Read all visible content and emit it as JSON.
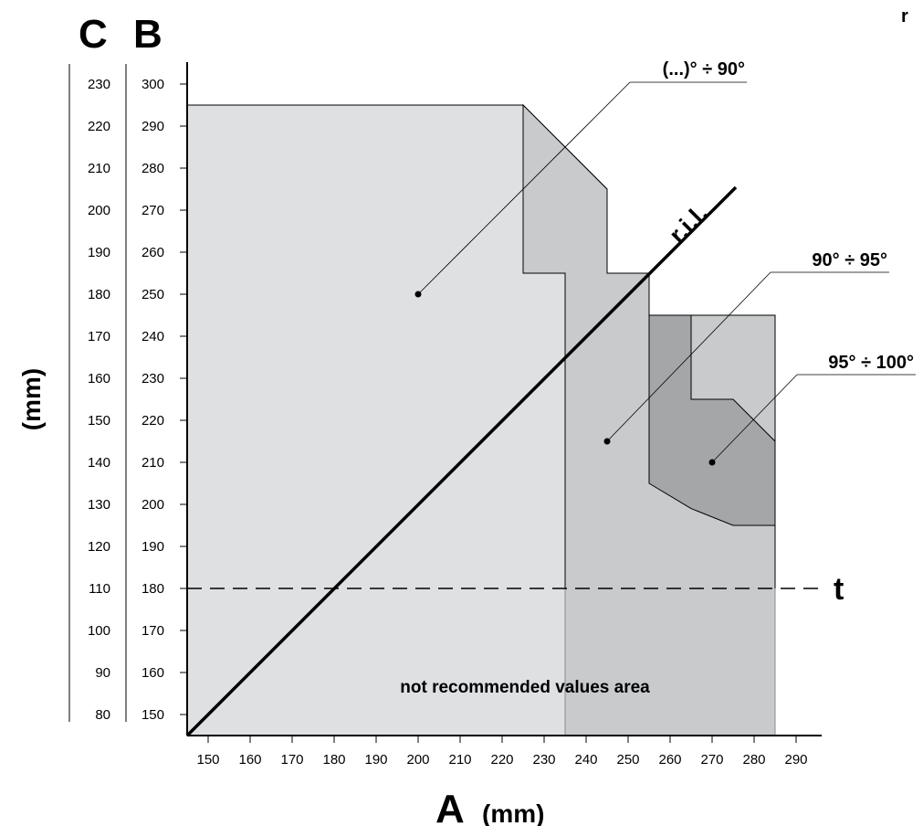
{
  "chart_data": {
    "type": "area",
    "corner_label": "r",
    "x_axis": {
      "letter": "A",
      "unit": "(mm)",
      "min": 145,
      "max": 295,
      "ticks": [
        150,
        160,
        170,
        180,
        190,
        200,
        210,
        220,
        230,
        240,
        250,
        260,
        270,
        280,
        290
      ]
    },
    "y_axis_B": {
      "letter": "B",
      "min": 145,
      "max": 305,
      "ticks": [
        150,
        160,
        170,
        180,
        190,
        200,
        210,
        220,
        230,
        240,
        250,
        260,
        270,
        280,
        290,
        300
      ]
    },
    "y_axis_C": {
      "letter": "C",
      "ticks": [
        80,
        90,
        100,
        110,
        120,
        130,
        140,
        150,
        160,
        170,
        180,
        190,
        200,
        210,
        220,
        230
      ]
    },
    "y_unit": "(mm)",
    "regions": [
      {
        "name": "(...)° ÷ 90°",
        "color": "#dfe0e2",
        "polygon": [
          [
            145,
            145
          ],
          [
            145,
            295
          ],
          [
            225,
            295
          ],
          [
            235,
            285
          ],
          [
            245,
            275
          ],
          [
            245,
            255
          ],
          [
            255,
            255
          ],
          [
            255,
            145
          ]
        ],
        "marker": [
          200,
          250
        ],
        "label_anchor": [
          255,
          305
        ]
      },
      {
        "name": "90° ÷ 95°",
        "color": "#c9cacc",
        "polygon": [
          [
            225,
            295
          ],
          [
            235,
            285
          ],
          [
            245,
            275
          ],
          [
            245,
            255
          ],
          [
            255,
            255
          ],
          [
            255,
            245
          ],
          [
            285,
            245
          ],
          [
            285,
            145
          ],
          [
            235,
            145
          ],
          [
            235,
            255
          ],
          [
            225,
            255
          ]
        ],
        "marker": [
          245,
          215
        ],
        "label_anchor": [
          285,
          260
        ]
      },
      {
        "name": "95° ÷ 100°",
        "color": "#a5a6a8",
        "polygon": [
          [
            255,
            245
          ],
          [
            265,
            245
          ],
          [
            265,
            225
          ],
          [
            275,
            225
          ],
          [
            285,
            215
          ],
          [
            285,
            195
          ],
          [
            275,
            195
          ],
          [
            265,
            199
          ],
          [
            255,
            205
          ]
        ],
        "marker": [
          270,
          210
        ],
        "label_anchor": [
          285,
          235
        ]
      }
    ],
    "not_recommended": {
      "label": "not recommended values area",
      "y_max": 180,
      "x_min": 145,
      "x_max": 285,
      "split_x": 235,
      "color_left": "#eaebec",
      "color_right": "#dfe0e2"
    },
    "threshold_line": {
      "label": "t",
      "y": 180,
      "style": "dashed"
    },
    "ril_line": {
      "label": "r.i.l.",
      "from": [
        145,
        145
      ],
      "to": [
        265,
        265
      ]
    }
  }
}
